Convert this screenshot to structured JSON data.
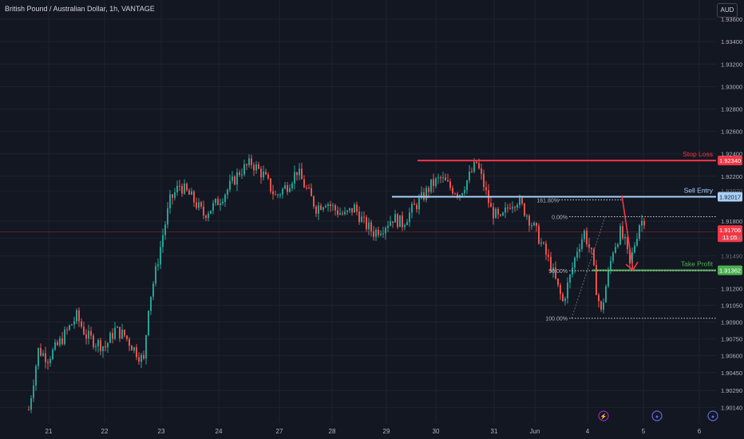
{
  "header": {
    "title": "British Pound / Australian Dollar, 1h, VANTAGE",
    "currency": "AUD"
  },
  "colors": {
    "background": "#131722",
    "up_candle": "#26a69a",
    "down_candle": "#ef5350",
    "stop_loss": "#f23645",
    "sell_entry": "#a9d1f7",
    "take_profit": "#4caf50",
    "axis_text": "#b2b5be"
  },
  "chart_data": {
    "type": "candlestick",
    "symbol": "GBPAUD",
    "timeframe": "1h",
    "y_range": [
      1.9,
      1.937
    ],
    "y_ticks": [
      1.936,
      1.934,
      1.932,
      1.93,
      1.928,
      1.926,
      1.924,
      1.922,
      1.9207,
      1.918,
      1.9165,
      1.9149,
      1.912,
      1.9105,
      1.909,
      1.9075,
      1.906,
      1.9045,
      1.9029,
      1.9014
    ],
    "y_tick_labels": [
      "1.93600",
      "1.93400",
      "1.93200",
      "1.93000",
      "1.92800",
      "1.92600",
      "1.92400",
      "1.92200",
      "1.92070",
      "1.91800",
      "1.91650",
      "1.91490",
      "1.91200",
      "1.91050",
      "1.90900",
      "1.90750",
      "1.90600",
      "1.90450",
      "1.90290",
      "1.90140"
    ],
    "x_labels": [
      "21",
      "22",
      "23",
      "24",
      "27",
      "28",
      "29",
      "30",
      "31",
      "Jun",
      "4",
      "5",
      "6"
    ],
    "price_levels": [
      {
        "label": "Stop Loss",
        "price": 1.9234,
        "price_label": "1.92340",
        "color": "#f23645"
      },
      {
        "label": "Sell Entry",
        "price": 1.92017,
        "price_label": "1.92017",
        "color": "#a9d1f7"
      },
      {
        "label": "Take Profit",
        "price": 1.91362,
        "price_label": "1.91362",
        "color": "#4caf50"
      }
    ],
    "current_price": {
      "price": 1.91706,
      "price_label": "1.91706",
      "countdown": "11:05",
      "color": "#f23645"
    },
    "fibonacci": [
      {
        "label": "161.80%",
        "price": 1.9199
      },
      {
        "label": "0.00%",
        "price": 1.91839
      },
      {
        "label": "50.00%",
        "price": 1.91358
      },
      {
        "label": "100.00%",
        "price": 1.90934
      }
    ],
    "close_path": [
      [
        0,
        1.9012
      ],
      [
        4,
        1.9065
      ],
      [
        8,
        1.9058
      ],
      [
        12,
        1.9069
      ],
      [
        16,
        1.9082
      ],
      [
        20,
        1.9095
      ],
      [
        24,
        1.9078
      ],
      [
        28,
        1.9072
      ],
      [
        32,
        1.9068
      ],
      [
        36,
        1.9083
      ],
      [
        40,
        1.9078
      ],
      [
        44,
        1.9066
      ],
      [
        48,
        1.9055
      ],
      [
        50,
        1.9105
      ],
      [
        53,
        1.9135
      ],
      [
        56,
        1.9168
      ],
      [
        59,
        1.9198
      ],
      [
        63,
        1.9212
      ],
      [
        68,
        1.9201
      ],
      [
        73,
        1.9186
      ],
      [
        78,
        1.9195
      ],
      [
        83,
        1.9208
      ],
      [
        88,
        1.9224
      ],
      [
        93,
        1.9232
      ],
      [
        98,
        1.9221
      ],
      [
        103,
        1.9202
      ],
      [
        108,
        1.9212
      ],
      [
        112,
        1.9225
      ],
      [
        116,
        1.9208
      ],
      [
        120,
        1.9192
      ],
      [
        124,
        1.9198
      ],
      [
        128,
        1.919
      ],
      [
        132,
        1.9185
      ],
      [
        136,
        1.9192
      ],
      [
        140,
        1.9178
      ],
      [
        144,
        1.917
      ],
      [
        148,
        1.9175
      ],
      [
        152,
        1.9183
      ],
      [
        156,
        1.9178
      ],
      [
        160,
        1.919
      ],
      [
        164,
        1.92
      ],
      [
        168,
        1.9212
      ],
      [
        172,
        1.9218
      ],
      [
        176,
        1.921
      ],
      [
        180,
        1.9205
      ],
      [
        184,
        1.922
      ],
      [
        187,
        1.9232
      ],
      [
        190,
        1.9212
      ],
      [
        193,
        1.919
      ],
      [
        197,
        1.918
      ],
      [
        201,
        1.9196
      ],
      [
        204,
        1.9199
      ],
      [
        208,
        1.9186
      ],
      [
        212,
        1.917
      ],
      [
        215,
        1.9155
      ],
      [
        218,
        1.914
      ],
      [
        221,
        1.912
      ],
      [
        223,
        1.9108
      ],
      [
        226,
        1.913
      ],
      [
        229,
        1.9155
      ],
      [
        232,
        1.917
      ],
      [
        235,
        1.915
      ],
      [
        237,
        1.912
      ],
      [
        239,
        1.9098
      ],
      [
        241,
        1.9122
      ],
      [
        244,
        1.9155
      ],
      [
        247,
        1.917
      ],
      [
        249,
        1.916
      ],
      [
        251,
        1.914
      ],
      [
        253,
        1.916
      ],
      [
        255,
        1.9178
      ],
      [
        257,
        1.9182
      ]
    ],
    "annotations": [
      "Stop Loss",
      "Sell Entry",
      "Take Profit",
      "161.80%",
      "0.00%",
      "50.00%",
      "100.00%"
    ]
  }
}
